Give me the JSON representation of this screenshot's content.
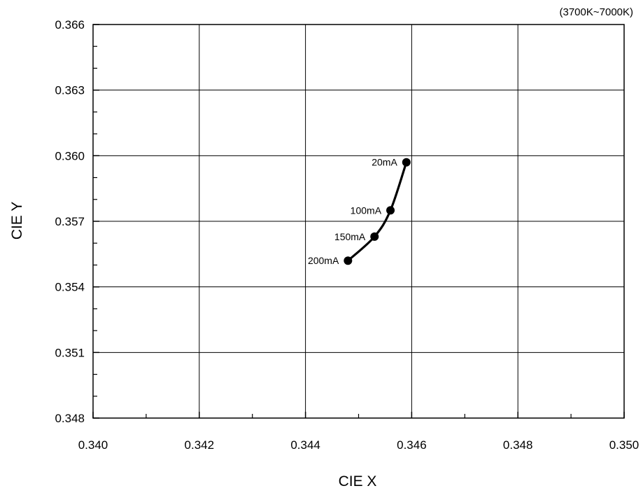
{
  "chart_data": {
    "type": "line",
    "title": "",
    "note": "(3700K~7000K)",
    "xlabel": "CIE X",
    "ylabel": "CIE Y",
    "xlim": [
      0.34,
      0.35
    ],
    "ylim": [
      0.348,
      0.366
    ],
    "x_ticks": [
      "0.340",
      "0.342",
      "0.344",
      "0.346",
      "0.348",
      "0.350"
    ],
    "y_ticks": [
      "0.348",
      "0.351",
      "0.354",
      "0.357",
      "0.360",
      "0.363",
      "0.366"
    ],
    "grid": true,
    "series": [
      {
        "points": [
          {
            "x": 0.3459,
            "y": 0.3597,
            "label": "20mA"
          },
          {
            "x": 0.3456,
            "y": 0.3575,
            "label": "100mA"
          },
          {
            "x": 0.3453,
            "y": 0.3563,
            "label": "150mA"
          },
          {
            "x": 0.3448,
            "y": 0.3552,
            "label": "200mA"
          }
        ]
      }
    ]
  }
}
